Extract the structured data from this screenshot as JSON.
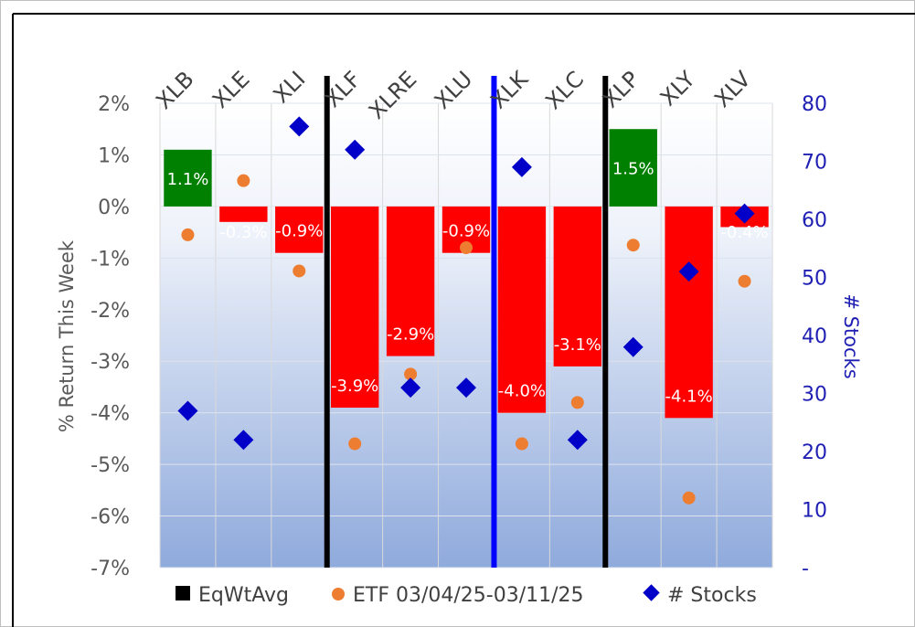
{
  "chart_data": {
    "type": "bar",
    "categories": [
      "XLB",
      "XLE",
      "XLI",
      "XLF",
      "XLRE",
      "XLU",
      "XLK",
      "XLC",
      "XLP",
      "XLY",
      "XLV"
    ],
    "series": [
      {
        "name": "EqWtAvg",
        "axis": "left",
        "kind": "bar",
        "values": [
          1.1,
          -0.3,
          -0.9,
          -3.9,
          -2.9,
          -0.9,
          -4.0,
          -3.1,
          1.5,
          -4.1,
          -0.4
        ],
        "labels": [
          "1.1%",
          "-0.3%",
          "-0.9%",
          "-3.9%",
          "-2.9%",
          "-0.9%",
          "-4.0%",
          "-3.1%",
          "1.5%",
          "-4.1%",
          "-0.4%"
        ]
      },
      {
        "name": "ETF 03/04/25-03/11/25",
        "axis": "left",
        "kind": "scatter",
        "values": [
          -0.55,
          0.5,
          -1.25,
          -4.6,
          -3.25,
          -0.8,
          -4.6,
          -3.8,
          -0.75,
          -5.65,
          -1.45
        ]
      },
      {
        "name": "# Stocks",
        "axis": "right",
        "kind": "scatter",
        "values": [
          27,
          22,
          76,
          72,
          31,
          31,
          69,
          22,
          38,
          51,
          61
        ]
      }
    ],
    "ylabel": "% Return This Week",
    "y2label": "# Stocks",
    "ylim": [
      -7,
      2
    ],
    "y2lim": [
      0,
      80
    ],
    "yticks": [
      2,
      1,
      0,
      -1,
      -2,
      -3,
      -4,
      -5,
      -6,
      -7
    ],
    "ytick_labels": [
      "2%",
      "1%",
      "0%",
      "-1%",
      "-2%",
      "-3%",
      "-4%",
      "-5%",
      "-6%",
      "-7%"
    ],
    "y2tick_labels": [
      "80",
      "70",
      "60",
      "50",
      "40",
      "30",
      "20",
      "10",
      "-"
    ],
    "dividers": [
      {
        "after_category": "XLI",
        "color": "#000000"
      },
      {
        "after_category": "XLU",
        "color": "#0000ff"
      },
      {
        "after_category": "XLC",
        "color": "#000000"
      }
    ],
    "legend_position": "bottom",
    "colors": {
      "positive_bar": "#008000",
      "negative_bar": "#ff0000",
      "etf_marker": "#ed7d31",
      "stocks_marker": "#0000c8"
    }
  },
  "legend": {
    "eqwt": "EqWtAvg",
    "etf": "ETF 03/04/25-03/11/25",
    "stocks": "# Stocks"
  }
}
